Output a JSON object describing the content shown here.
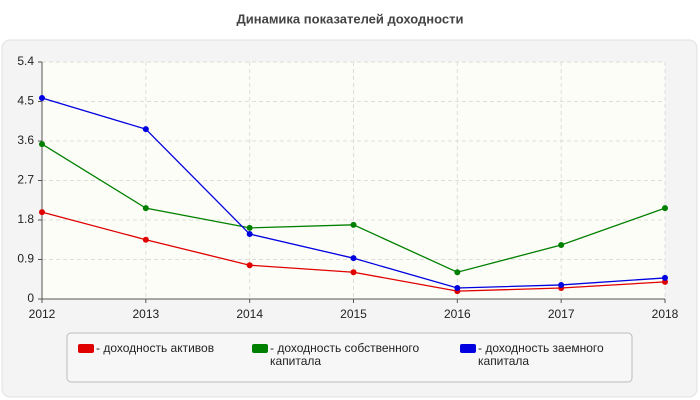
{
  "chart_data": {
    "type": "line",
    "title": "Динамика показателей доходности",
    "x": [
      2012,
      2013,
      2014,
      2015,
      2016,
      2017,
      2018
    ],
    "xlim": [
      2012,
      2018
    ],
    "xticks": [
      2012,
      2013,
      2014,
      2015,
      2016,
      2017,
      2018
    ],
    "ylim": [
      0,
      5.4
    ],
    "yticks": [
      0,
      0.9,
      1.8,
      2.7,
      3.6,
      4.5,
      5.4
    ],
    "grid": true,
    "legend": "bottom",
    "series": [
      {
        "name": "- доходность активов",
        "color": "#e00000",
        "values": [
          1.98,
          1.35,
          0.77,
          0.61,
          0.18,
          0.25,
          0.39
        ]
      },
      {
        "name": "- доходность собственного капитала",
        "color": "#008000",
        "values": [
          3.53,
          2.07,
          1.62,
          1.69,
          0.61,
          1.23,
          2.07
        ]
      },
      {
        "name": "- доходность заемного капитала",
        "color": "#0000e0",
        "values": [
          4.58,
          3.87,
          1.48,
          0.93,
          0.25,
          0.32,
          0.48
        ]
      }
    ]
  }
}
